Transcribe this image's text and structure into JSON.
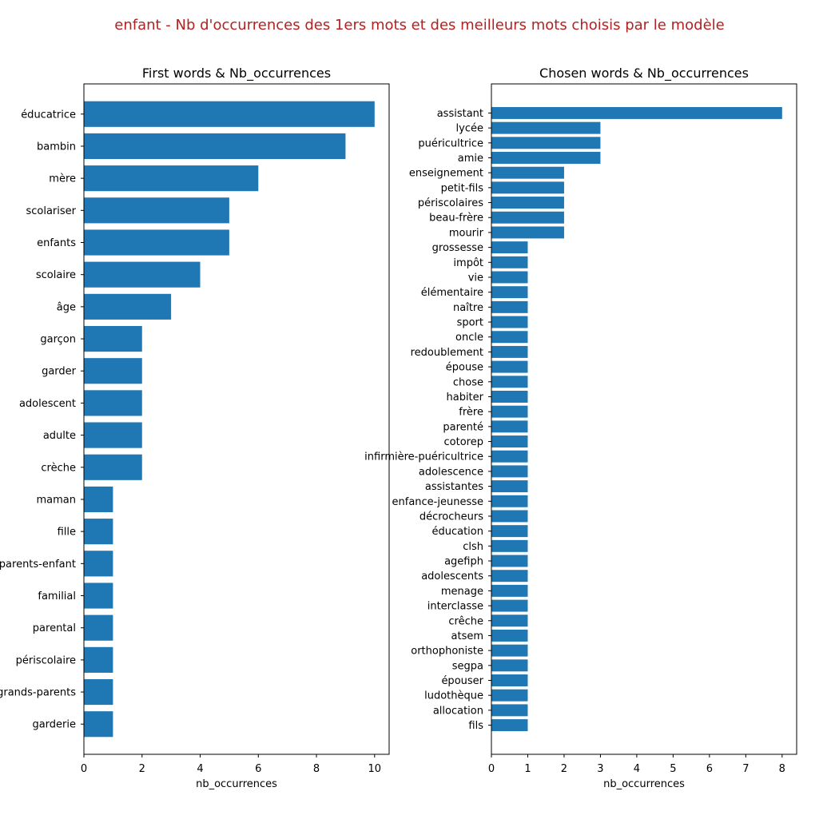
{
  "figure": {
    "suptitle": "enfant - Nb d'occurrences des 1ers mots et des meilleurs mots choisis par le modèle",
    "suptitle_color": "#b22222",
    "bar_color": "#1f77b4"
  },
  "chart_data": [
    {
      "type": "bar",
      "orientation": "horizontal",
      "title": "First words & Nb_occurrences",
      "xlabel": "nb_occurrences",
      "ylabel": "",
      "xlim": [
        0,
        10.5
      ],
      "xticks": [
        0,
        2,
        4,
        6,
        8,
        10
      ],
      "grid": false,
      "categories": [
        "éducatrice",
        "bambin",
        "mère",
        "scolariser",
        "enfants",
        "scolaire",
        "âge",
        "garçon",
        "garder",
        "adolescent",
        "adulte",
        "crèche",
        "maman",
        "fille",
        "parents-enfant",
        "familial",
        "parental",
        "périscolaire",
        "grands-parents",
        "garderie"
      ],
      "values": [
        10,
        9,
        6,
        5,
        5,
        4,
        3,
        2,
        2,
        2,
        2,
        2,
        1,
        1,
        1,
        1,
        1,
        1,
        1,
        1
      ]
    },
    {
      "type": "bar",
      "orientation": "horizontal",
      "title": "Chosen words & Nb_occurrences",
      "xlabel": "nb_occurrences",
      "ylabel": "",
      "xlim": [
        0,
        8.4
      ],
      "xticks": [
        0,
        1,
        2,
        3,
        4,
        5,
        6,
        7,
        8
      ],
      "grid": false,
      "categories": [
        "assistant",
        "lycée",
        "puéricultrice",
        "amie",
        "enseignement",
        "petit-fils",
        "périscolaires",
        "beau-frère",
        "mourir",
        "grossesse",
        "impôt",
        "vie",
        "élémentaire",
        "naître",
        "sport",
        "oncle",
        "redoublement",
        "épouse",
        "chose",
        "habiter",
        "frère",
        "parenté",
        "cotorep",
        "infirmière-puéricultrice",
        "adolescence",
        "assistantes",
        "enfance-jeunesse",
        "décrocheurs",
        "éducation",
        "clsh",
        "agefiph",
        "adolescents",
        "menage",
        "interclasse",
        "crêche",
        "atsem",
        "orthophoniste",
        "segpa",
        "épouser",
        "ludothèque",
        "allocation",
        "fils"
      ],
      "values": [
        8,
        3,
        3,
        3,
        2,
        2,
        2,
        2,
        2,
        1,
        1,
        1,
        1,
        1,
        1,
        1,
        1,
        1,
        1,
        1,
        1,
        1,
        1,
        1,
        1,
        1,
        1,
        1,
        1,
        1,
        1,
        1,
        1,
        1,
        1,
        1,
        1,
        1,
        1,
        1,
        1,
        1
      ]
    }
  ]
}
